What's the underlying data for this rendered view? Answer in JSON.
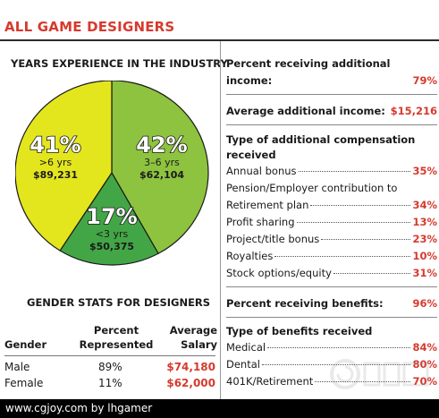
{
  "title": "ALL GAME DESIGNERS",
  "experience": {
    "heading": "YEARS EXPERIENCE IN THE INDUSTRY"
  },
  "chart_data": {
    "type": "pie",
    "slices": [
      {
        "pct": "42%",
        "value": 42,
        "range": "3–6 yrs",
        "salary": "$62,104",
        "color": "#8dc33f"
      },
      {
        "pct": "17%",
        "value": 17,
        "range": "<3 yrs",
        "salary": "$50,375",
        "color": "#43a646"
      },
      {
        "pct": "41%",
        "value": 41,
        "range": ">6 yrs",
        "salary": "$89,231",
        "color": "#e3e61d"
      }
    ]
  },
  "gender": {
    "heading": "GENDER STATS FOR DESIGNERS",
    "col_gender": "Gender",
    "col_percent_1": "Percent",
    "col_percent_2": "Represented",
    "col_salary_1": "Average",
    "col_salary_2": "Salary",
    "rows": [
      {
        "gender": "Male",
        "percent": "89%",
        "salary": "$74,180"
      },
      {
        "gender": "Female",
        "percent": "11%",
        "salary": "$62,000"
      }
    ]
  },
  "stats": {
    "additional_income_label_1": "Percent receiving additional",
    "additional_income_label_2": "income:",
    "additional_income_value": "79%",
    "avg_additional_label": "Average additional income:",
    "avg_additional_value": "$15,216",
    "comp_types_heading_1": "Type of additional compensation",
    "comp_types_heading_2": "received",
    "comp_items": [
      {
        "label": "Annual bonus",
        "value": "35%"
      },
      {
        "label": "Pension/Employer contribution to",
        "value": ""
      },
      {
        "label": "Retirement plan",
        "value": "34%"
      },
      {
        "label": "Profit sharing",
        "value": "13%"
      },
      {
        "label": "Project/title bonus",
        "value": "23%"
      },
      {
        "label": "Royalties",
        "value": "10%"
      },
      {
        "label": "Stock options/equity",
        "value": "31%"
      }
    ],
    "benefits_label": "Percent receiving benefits:",
    "benefits_value": "96%",
    "benefit_types_heading": "Type of benefits received",
    "benefit_items": [
      {
        "label": "Medical",
        "value": "84%"
      },
      {
        "label": "Dental",
        "value": "80%"
      },
      {
        "label": "401K/Retirement",
        "value": "70%"
      }
    ]
  },
  "footer": "www.cgjoy.com by lhgamer"
}
